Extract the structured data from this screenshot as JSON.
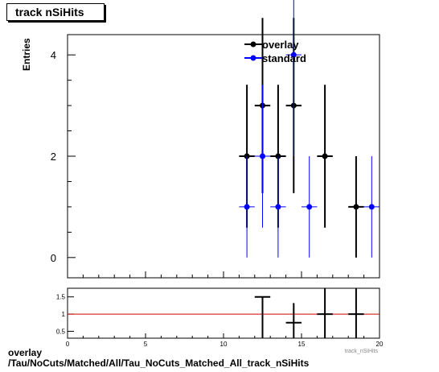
{
  "title": "track nSiHits",
  "footer": {
    "line1": "overlay",
    "line2": "/Tau/NoCuts/Matched/All/Tau_NoCuts_Matched_All_track_nSiHits"
  },
  "chart_data": [
    {
      "type": "scatter",
      "ylabel": "Entries",
      "xlabel": "track_nSiHits",
      "xlim": [
        0,
        20
      ],
      "ylim": [
        -0.4,
        4.4
      ],
      "yticks": [
        "0",
        "2",
        "4"
      ],
      "legend": {
        "position": "top-center",
        "entries": [
          "overlay",
          "standard"
        ]
      },
      "series": [
        {
          "name": "overlay",
          "color": "#000000",
          "points": [
            {
              "x": 11.5,
              "y": 2,
              "err": 1.41
            },
            {
              "x": 12.5,
              "y": 3,
              "err": 1.73
            },
            {
              "x": 13.5,
              "y": 2,
              "err": 1.41
            },
            {
              "x": 14.5,
              "y": 3,
              "err": 1.73
            },
            {
              "x": 16.5,
              "y": 2,
              "err": 1.41
            },
            {
              "x": 18.5,
              "y": 1,
              "err": 1.0
            }
          ]
        },
        {
          "name": "standard",
          "color": "#0000ff",
          "points": [
            {
              "x": 11.5,
              "y": 1,
              "err": 1.0
            },
            {
              "x": 12.5,
              "y": 2,
              "err": 1.41
            },
            {
              "x": 13.5,
              "y": 1,
              "err": 1.0
            },
            {
              "x": 14.5,
              "y": 4,
              "err": 2.0
            },
            {
              "x": 15.5,
              "y": 1,
              "err": 1.0
            },
            {
              "x": 19.5,
              "y": 1,
              "err": 1.0
            }
          ]
        }
      ]
    },
    {
      "type": "scatter",
      "xlim": [
        0,
        20
      ],
      "ylim": [
        0.3,
        1.75
      ],
      "xticks": [
        "0",
        "5",
        "10",
        "15",
        "20"
      ],
      "yticks": [
        "0.5",
        "1",
        "1.5"
      ],
      "reference_line": {
        "y": 1,
        "color": "#cc0000"
      },
      "series": [
        {
          "name": "ratio",
          "color": "#000000",
          "points": [
            {
              "x": 12.5,
              "y": 1.5
            },
            {
              "x": 14.5,
              "y": 0.75
            },
            {
              "x": 16.5,
              "y": 1.0
            },
            {
              "x": 18.5,
              "y": 1.0
            }
          ]
        }
      ]
    }
  ]
}
